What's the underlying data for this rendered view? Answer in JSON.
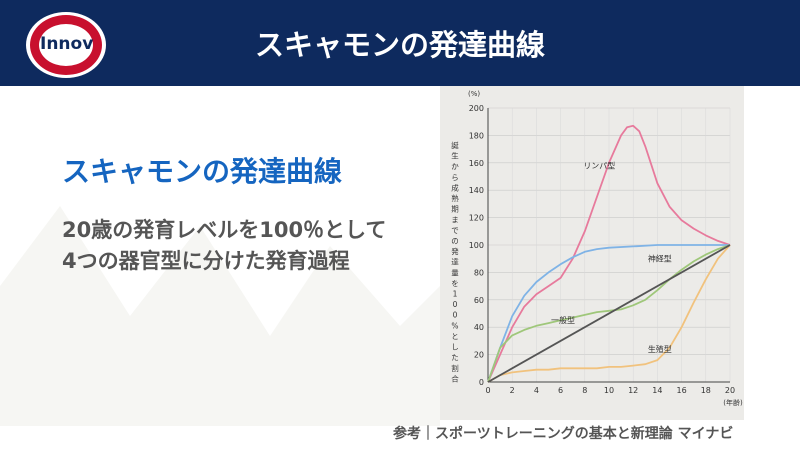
{
  "header": {
    "logo_text": "Innov",
    "title": "スキャモンの発達曲線"
  },
  "main": {
    "subtitle": "スキャモンの発達曲線",
    "desc_lines": [
      "20歳の発育レベルを100％として",
      "4つの器官型に分けた発育過程"
    ]
  },
  "credit": "参考｜スポーツトレーニングの基本と新理論 マイナビ",
  "chart_data": {
    "type": "line",
    "y_unit": "(%)",
    "x_unit": "(年齢)",
    "ylabel": "誕生から成熟期までの発達量を100%とした割合",
    "xlim": [
      0,
      20
    ],
    "ylim": [
      0,
      200
    ],
    "x_ticks": [
      "0",
      "2",
      "4",
      "6",
      "8",
      "10",
      "12",
      "14",
      "16",
      "18",
      "20"
    ],
    "y_ticks": [
      "0",
      "20",
      "40",
      "60",
      "80",
      "100",
      "120",
      "140",
      "160",
      "180",
      "200"
    ],
    "series": [
      {
        "name": "リンパ型",
        "color": "#e77a9c",
        "x": [
          0,
          1,
          2,
          3,
          4,
          5,
          6,
          7,
          8,
          9,
          10,
          11,
          11.5,
          12,
          12.5,
          13,
          14,
          15,
          16,
          17,
          18,
          19,
          20
        ],
        "y": [
          0,
          20,
          40,
          55,
          64,
          70,
          76,
          90,
          110,
          135,
          160,
          180,
          186,
          187,
          183,
          172,
          145,
          128,
          118,
          112,
          107,
          103,
          100
        ]
      },
      {
        "name": "神経型",
        "color": "#7fb3e6",
        "x": [
          0,
          1,
          2,
          3,
          4,
          5,
          6,
          7,
          8,
          9,
          10,
          12,
          14,
          16,
          18,
          20
        ],
        "y": [
          0,
          25,
          48,
          63,
          73,
          80,
          86,
          91,
          95,
          97,
          98,
          99,
          100,
          100,
          100,
          100
        ]
      },
      {
        "name": "一般型",
        "color": "#9fc77a",
        "x": [
          0,
          1,
          2,
          3,
          4,
          5,
          6,
          7,
          8,
          9,
          10,
          11,
          12,
          13,
          14,
          15,
          16,
          17,
          18,
          19,
          20
        ],
        "y": [
          0,
          25,
          34,
          38,
          41,
          43,
          45,
          47,
          49,
          51,
          52,
          53,
          56,
          60,
          67,
          75,
          82,
          88,
          93,
          97,
          100
        ]
      },
      {
        "name": "生殖型",
        "color": "#f1c27d",
        "x": [
          0,
          1,
          2,
          3,
          4,
          5,
          6,
          7,
          8,
          9,
          10,
          11,
          12,
          13,
          14,
          15,
          16,
          17,
          18,
          19,
          20
        ],
        "y": [
          0,
          5,
          7,
          8,
          9,
          9,
          10,
          10,
          10,
          10,
          11,
          11,
          12,
          13,
          16,
          25,
          40,
          58,
          75,
          90,
          100
        ]
      },
      {
        "name": "",
        "color": "#555555",
        "x": [
          0,
          20
        ],
        "y": [
          0,
          100
        ]
      }
    ]
  }
}
